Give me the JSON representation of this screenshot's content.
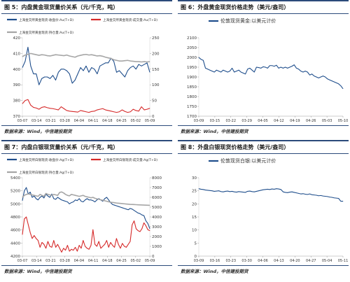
{
  "figures": [
    {
      "number": "图 5：",
      "title": "内盘黄金现货量价关系（元/千克，吨）",
      "source": "数据来源：Wind，中信建投期货"
    },
    {
      "number": "图 6：",
      "title": "外盘黄金现货价格走势（美元/盎司）",
      "source": "数据来源：Wind，中信建投期货"
    },
    {
      "number": "图 7：",
      "title": "内盘白银现货量价关系（元/千克，吨）",
      "source": "数据来源：Wind，中信建投期货"
    },
    {
      "number": "图 8：",
      "title": "外盘白银现货价格走势（美元/盎司）",
      "source": "数据来源：Wind，中信建投期货"
    }
  ],
  "chart_data": [
    {
      "type": "line",
      "dual_axis": true,
      "x": [
        "03-07",
        "03-10",
        "03-11",
        "03-12",
        "03-13",
        "03-14",
        "03-17",
        "03-18",
        "03-19",
        "03-20",
        "03-21",
        "03-24",
        "03-25",
        "03-26",
        "03-27",
        "03-28",
        "03-31",
        "04-01",
        "04-02",
        "04-03",
        "04-04",
        "04-07",
        "04-08",
        "04-09",
        "04-10",
        "04-11",
        "04-14",
        "04-15",
        "04-16",
        "04-17",
        "04-18",
        "04-21",
        "04-22",
        "04-23",
        "04-24",
        "04-25",
        "04-28",
        "04-29",
        "04-30",
        "05-02",
        "05-05",
        "05-06",
        "05-07",
        "05-08",
        "05-09",
        "05-12",
        "05-13"
      ],
      "x_tick_labels": [
        "03-07",
        "03-14",
        "03-21",
        "03-28",
        "04-04",
        "04-11",
        "04-18",
        "04-25",
        "05-02",
        "05-09"
      ],
      "ylim_left": [
        370,
        420
      ],
      "ylim_right": [
        0,
        250
      ],
      "y_ticks_left": [
        370,
        380,
        390,
        400,
        410,
        420
      ],
      "y_ticks_right": [
        0,
        50,
        100,
        150,
        200,
        250
      ],
      "legend_position": "top",
      "series": [
        {
          "name": "上海金交所黄金现货:收盘价:Au(T+D)",
          "axis": "left",
          "color": "#1f4e8c",
          "values": [
            401,
            405,
            414,
            402,
            397,
            397,
            390,
            394,
            395,
            395,
            394,
            396,
            393,
            398,
            400,
            400,
            399,
            397,
            391,
            393,
            397,
            401,
            399,
            402,
            398,
            401,
            400,
            397,
            402,
            403,
            404,
            404,
            407,
            405,
            398,
            399,
            397,
            395,
            399,
            401,
            402,
            400,
            403,
            402,
            403,
            404,
            398
          ]
        },
        {
          "name": "上海金交所黄金现货:成交量:Au(T+D)",
          "axis": "right",
          "color": "#d62a2a",
          "values": [
            40,
            50,
            53,
            35,
            28,
            26,
            22,
            28,
            30,
            27,
            25,
            24,
            22,
            20,
            30,
            24,
            18,
            16,
            15,
            14,
            13,
            18,
            16,
            14,
            12,
            15,
            16,
            20,
            22,
            24,
            20,
            18,
            16,
            14,
            12,
            14,
            20,
            15,
            12,
            14,
            22,
            18,
            16,
            30,
            20,
            22,
            25
          ]
        },
        {
          "name": "上海金交所黄金现货:持仓量:Au(T+D)",
          "axis": "right",
          "color": "#a6a6a6",
          "values": [
            190,
            195,
            197,
            200,
            198,
            196,
            194,
            196,
            195,
            193,
            192,
            194,
            196,
            195,
            194,
            193,
            195,
            192,
            190,
            188,
            192,
            194,
            196,
            197,
            195,
            196,
            194,
            192,
            193,
            191,
            188,
            186,
            184,
            180,
            178,
            176,
            176,
            177,
            178,
            176,
            175,
            174,
            174,
            173,
            174,
            173,
            174
          ]
        }
      ]
    },
    {
      "type": "line",
      "x": [
        "03-09",
        "03-10",
        "03-11",
        "03-12",
        "03-13",
        "03-14",
        "03-15",
        "03-16",
        "03-17",
        "03-18",
        "03-19",
        "03-20",
        "03-21",
        "03-22",
        "03-23",
        "03-24",
        "03-25",
        "03-26",
        "03-27",
        "03-28",
        "03-29",
        "03-30",
        "03-31",
        "04-01",
        "04-02",
        "04-03",
        "04-04",
        "04-05",
        "04-06",
        "04-07",
        "04-08",
        "04-09",
        "04-10",
        "04-11",
        "04-12",
        "04-13",
        "04-14",
        "04-15",
        "04-16",
        "04-17",
        "04-18",
        "04-19",
        "04-20",
        "04-21",
        "04-22",
        "04-23",
        "04-24",
        "04-25",
        "04-26",
        "04-27",
        "04-28",
        "04-29",
        "04-30",
        "05-01",
        "05-02",
        "05-03",
        "05-04",
        "05-05",
        "05-06",
        "05-07",
        "05-08",
        "05-09",
        "05-10",
        "05-11",
        "05-12",
        "05-13"
      ],
      "x_tick_labels": [
        "03-09",
        "03-15",
        "03-22",
        "03-29",
        "04-05",
        "04-12",
        "04-19",
        "04-26",
        "05-03",
        "05-10"
      ],
      "ylim": [
        1700,
        2100
      ],
      "y_ticks": [
        1700,
        1750,
        1800,
        1850,
        1900,
        1950,
        2000,
        2050,
        2100
      ],
      "legend_position": "top",
      "series": [
        {
          "name": "伦敦现货黄金:以美元计价",
          "color": "#1f4e8c",
          "values": [
            2000,
            1990,
            1985,
            1945,
            1940,
            1935,
            1930,
            1925,
            1935,
            1930,
            1925,
            1935,
            1930,
            1925,
            1930,
            1945,
            1925,
            1930,
            1935,
            1925,
            1920,
            1915,
            1940,
            1945,
            1935,
            1925,
            1950,
            1948,
            1945,
            1952,
            1950,
            1945,
            1958,
            1958,
            1955,
            1960,
            1945,
            1950,
            1945,
            1950,
            1945,
            1950,
            1955,
            1962,
            1945,
            1940,
            1930,
            1925,
            1930,
            1925,
            1910,
            1915,
            1905,
            1900,
            1895,
            1900,
            1905,
            1900,
            1890,
            1885,
            1880,
            1875,
            1870,
            1865,
            1855,
            1840
          ]
        }
      ]
    },
    {
      "type": "line",
      "dual_axis": true,
      "x": [
        "03-07",
        "03-10",
        "03-11",
        "03-12",
        "03-13",
        "03-14",
        "03-15",
        "03-16",
        "03-17",
        "03-18",
        "03-19",
        "03-20",
        "03-21",
        "03-22",
        "03-23",
        "03-24",
        "03-25",
        "03-26",
        "03-27",
        "03-28",
        "03-29",
        "03-30",
        "03-31",
        "04-01",
        "04-02",
        "04-03",
        "04-04",
        "04-05",
        "04-06",
        "04-07",
        "04-08",
        "04-09",
        "04-10",
        "04-11",
        "04-12",
        "04-13",
        "04-14",
        "04-15",
        "04-16",
        "04-17",
        "04-18",
        "04-19",
        "04-20",
        "04-21",
        "04-22",
        "04-23",
        "04-24",
        "04-25",
        "04-26",
        "04-27",
        "04-28",
        "04-29",
        "04-30",
        "05-01",
        "05-02",
        "05-03",
        "05-04",
        "05-05",
        "05-06",
        "05-07",
        "05-08",
        "05-09",
        "05-10",
        "05-11",
        "05-12",
        "05-13"
      ],
      "x_tick_labels": [
        "03-07",
        "03-14",
        "03-21",
        "03-28",
        "04-04",
        "04-11",
        "04-18",
        "04-25",
        "05-02",
        "05-09"
      ],
      "ylim_left": [
        4200,
        5400
      ],
      "ylim_right": [
        0,
        8000
      ],
      "y_ticks_left": [
        4200,
        4400,
        4600,
        4800,
        5000,
        5200,
        5400
      ],
      "y_ticks_right": [
        0,
        1000,
        2000,
        3000,
        4000,
        5000,
        6000,
        7000,
        8000
      ],
      "legend_position": "top",
      "series": [
        {
          "name": "上海金交所白银现货:收盘价:Ag(T+D)",
          "axis": "left",
          "color": "#1f4e8c",
          "values": [
            5050,
            5200,
            5250,
            5150,
            5180,
            5100,
            5120,
            5080,
            5060,
            5100,
            5120,
            5090,
            5150,
            5120,
            5100,
            5150,
            5080,
            5070,
            5100,
            5080,
            5060,
            5050,
            5040,
            5030,
            5000,
            5020,
            5030,
            5060,
            5050,
            5080,
            5040,
            5030,
            5060,
            5080,
            5060,
            5060,
            5050,
            5030,
            5060,
            5080,
            5060,
            5040,
            5080,
            5100,
            5060,
            5020,
            4990,
            4980,
            4970,
            4960,
            4950,
            4940,
            4930,
            4920,
            4910,
            4930,
            4920,
            4900,
            4880,
            4860,
            4850,
            4830,
            4820,
            4740,
            4700,
            4620
          ]
        },
        {
          "name": "上海金交所白银现货:成交量:Ag(T+D)",
          "axis": "right",
          "color": "#d62a2a",
          "values": [
            2200,
            3800,
            4000,
            3200,
            2400,
            1800,
            2100,
            1800,
            1600,
            900,
            1400,
            1200,
            800,
            1500,
            1000,
            900,
            1600,
            900,
            1200,
            800,
            400,
            800,
            600,
            1100,
            500,
            700,
            600,
            900,
            500,
            1100,
            800,
            1600,
            1000,
            800,
            700,
            1100,
            2700,
            1200,
            1000,
            1500,
            800,
            1000,
            1200,
            1600,
            900,
            1400,
            1100,
            900,
            1800,
            1200,
            800,
            1300,
            1000,
            900,
            1200,
            1500,
            3200,
            3600,
            2800,
            2600,
            2500,
            2800,
            3400,
            3100,
            2700,
            2600
          ]
        },
        {
          "name": "上海金交所白银现货:持仓量:Ag(T+D)",
          "axis": "right",
          "color": "#a6a6a6",
          "values": [
            6000,
            6200,
            6300,
            6350,
            6300,
            6250,
            6200,
            6150,
            6100,
            6300,
            6200,
            6100,
            6400,
            6300,
            6250,
            6200,
            6300,
            6250,
            6200,
            6500,
            6550,
            6450,
            6300,
            6200,
            6150,
            6300,
            6250,
            6200,
            6150,
            6100,
            6150,
            6200,
            6100,
            6050,
            6000,
            5950,
            6000,
            5900,
            5850,
            5800,
            5750,
            5700,
            5650,
            5600,
            5550,
            5500,
            5480,
            5450,
            5420,
            5400,
            5380,
            5360,
            5340,
            5320,
            5300,
            5280,
            5270,
            5260,
            5250,
            5240,
            5230,
            5220,
            5210,
            5200,
            5190,
            5180
          ]
        }
      ]
    },
    {
      "type": "line",
      "x": [
        "03-09",
        "03-10",
        "03-11",
        "03-12",
        "03-13",
        "03-14",
        "03-15",
        "03-16",
        "03-17",
        "03-18",
        "03-19",
        "03-20",
        "03-21",
        "03-22",
        "03-23",
        "03-24",
        "03-25",
        "03-26",
        "03-27",
        "03-28",
        "03-29",
        "03-30",
        "03-31",
        "04-01",
        "04-02",
        "04-03",
        "04-04",
        "04-05",
        "04-06",
        "04-07",
        "04-08",
        "04-09",
        "04-10",
        "04-11",
        "04-12",
        "04-13",
        "04-14",
        "04-15",
        "04-16",
        "04-17",
        "04-18",
        "04-19",
        "04-20",
        "04-21",
        "04-22",
        "04-23",
        "04-24",
        "04-25",
        "04-26",
        "04-27",
        "04-28",
        "04-29",
        "04-30",
        "05-01",
        "05-02",
        "05-03",
        "05-04",
        "05-05",
        "05-06",
        "05-07",
        "05-08",
        "05-09",
        "05-10",
        "05-11",
        "05-12",
        "05-13"
      ],
      "x_tick_labels": [
        "03-09",
        "03-16",
        "03-23",
        "03-30",
        "04-06",
        "04-13",
        "04-20",
        "04-27",
        "05-04",
        "05-11"
      ],
      "ylim": [
        0,
        30
      ],
      "y_ticks": [
        0,
        5,
        10,
        15,
        20,
        25,
        30
      ],
      "legend_position": "top",
      "series": [
        {
          "name": "伦敦现货白银:以美元计价",
          "color": "#1f4e8c",
          "values": [
            25.8,
            25.6,
            25.5,
            25.3,
            25.2,
            25.1,
            25.0,
            24.8,
            24.9,
            25.0,
            24.7,
            24.6,
            24.8,
            24.9,
            24.7,
            24.8,
            24.6,
            24.5,
            24.7,
            24.6,
            24.5,
            24.4,
            24.8,
            24.9,
            24.7,
            24.6,
            24.8,
            25.0,
            25.2,
            25.4,
            25.5,
            25.6,
            25.5,
            25.7,
            25.6,
            25.8,
            25.7,
            25.5,
            24.6,
            24.4,
            24.3,
            24.5,
            24.6,
            24.4,
            24.2,
            24.0,
            23.8,
            23.9,
            23.7,
            23.6,
            23.8,
            23.5,
            23.4,
            23.3,
            23.1,
            23.2,
            23.0,
            22.9,
            22.8,
            22.6,
            22.5,
            22.3,
            22.2,
            22.1,
            21.0,
            21.0
          ]
        }
      ]
    }
  ]
}
